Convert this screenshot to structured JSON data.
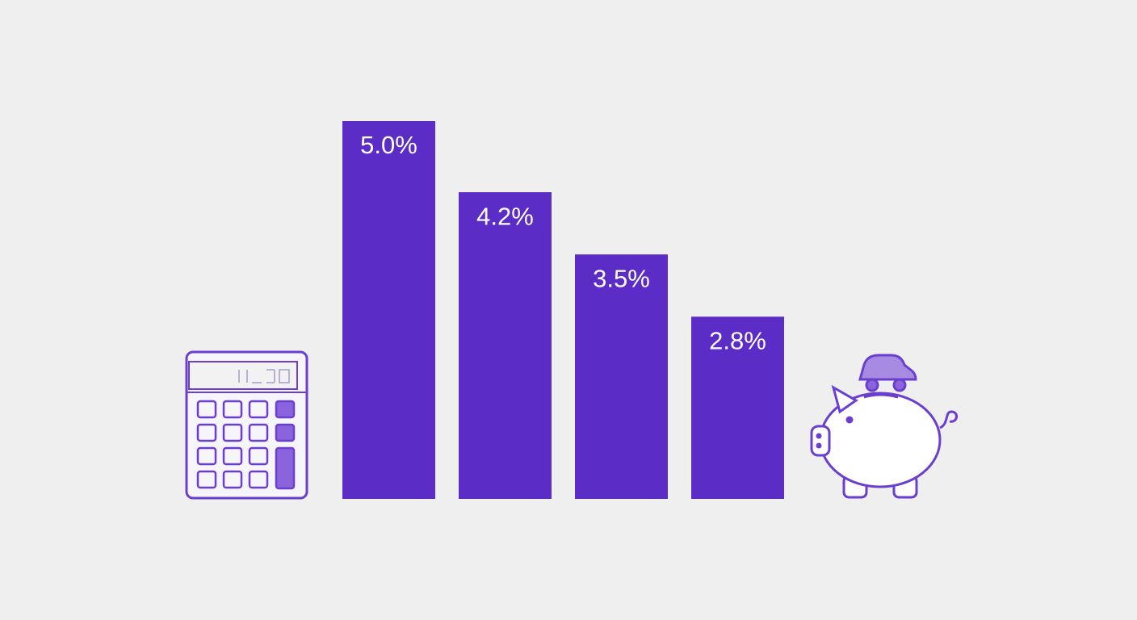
{
  "chart_data": {
    "type": "bar",
    "categories": [
      null,
      null,
      null,
      null
    ],
    "values": [
      5.0,
      4.2,
      3.5,
      2.8
    ],
    "value_labels": [
      "5.0%",
      "4.2%",
      "3.5%",
      "2.8%"
    ],
    "color": "#5b2cc6",
    "ylim": [
      0.75,
      5
    ],
    "grid": false
  }
}
